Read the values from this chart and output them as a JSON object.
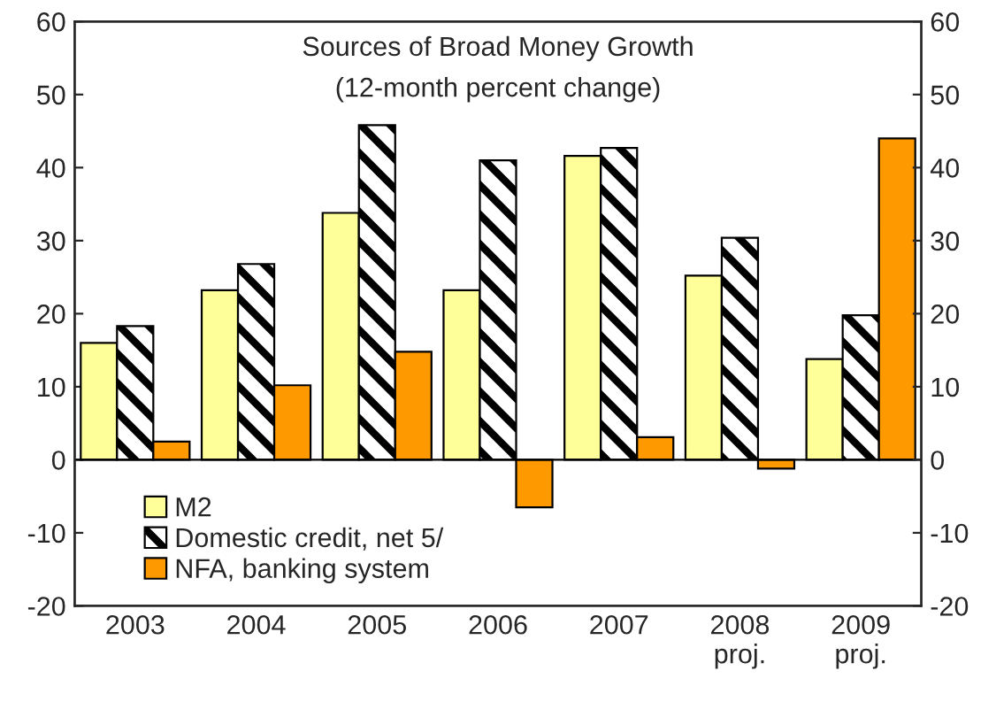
{
  "chart_data": {
    "type": "bar",
    "title": "Sources of Broad Money Growth",
    "subtitle": "(12-month percent change)",
    "categories": [
      "2003",
      "2004",
      "2005",
      "2006",
      "2007",
      "2008\nproj.",
      "2009\nproj."
    ],
    "series": [
      {
        "name": "M2",
        "color": "#ffff99",
        "values": [
          16,
          23.2,
          33.8,
          23.2,
          41.6,
          25.2,
          13.8
        ]
      },
      {
        "name": "Domestic credit, net 5/",
        "color": "#000000",
        "values": [
          18.3,
          26.8,
          45.8,
          41,
          42.7,
          30.4,
          19.8
        ]
      },
      {
        "name": "NFA, banking system",
        "color": "#ff9900",
        "values": [
          2.5,
          10.2,
          14.8,
          -6.5,
          3.1,
          -1.2,
          44
        ]
      }
    ],
    "ylim": [
      -20,
      60
    ],
    "yticks": [
      -20,
      -10,
      0,
      10,
      20,
      30,
      40,
      50,
      60
    ],
    "y2lim": [
      -20,
      60
    ],
    "y2ticks": [
      -20,
      -10,
      0,
      10,
      20,
      30,
      40,
      50,
      60
    ],
    "grid": false,
    "legend": "bottom left",
    "ref_lines": [
      {
        "axis": "y",
        "value": 0
      }
    ]
  }
}
